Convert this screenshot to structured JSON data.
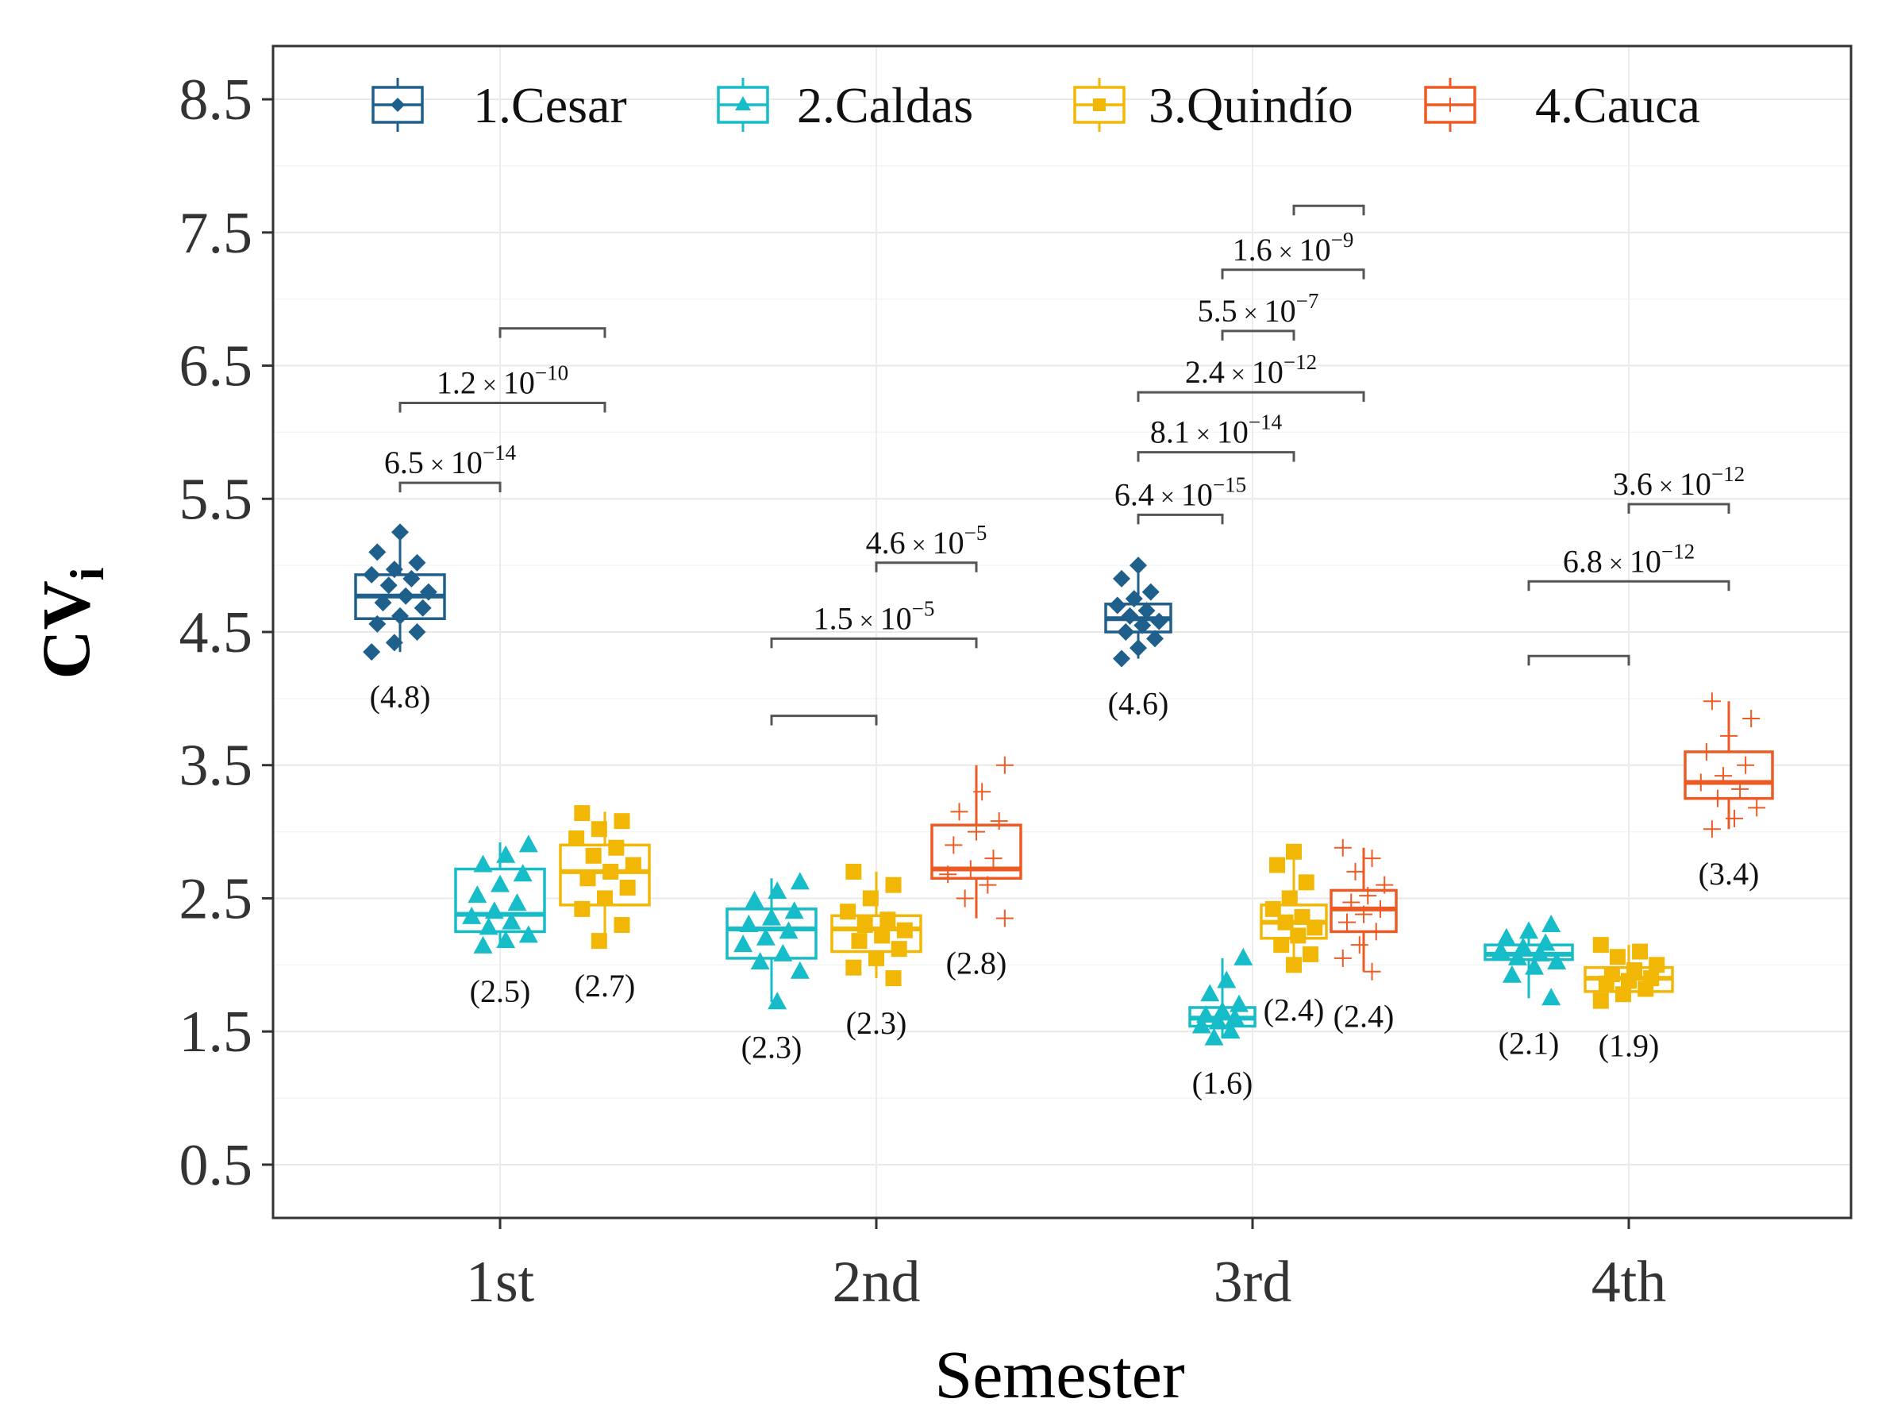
{
  "chart_data": {
    "type": "box",
    "title": "",
    "xlabel": "Semester",
    "ylabel": "CV",
    "ylabel_subscript": "i",
    "ylim": [
      0.1,
      8.9
    ],
    "yticks": [
      "0.5",
      "1.5",
      "2.5",
      "3.5",
      "4.5",
      "5.5",
      "6.5",
      "7.5",
      "8.5"
    ],
    "categories": [
      "1st",
      "2nd",
      "3rd",
      "4th"
    ],
    "legend": {
      "position": "top",
      "items": [
        {
          "label": "1.Cesar",
          "color": "#1f5f8b",
          "marker": "diamond"
        },
        {
          "label": "2.Caldas",
          "color": "#17bcc9",
          "marker": "triangle"
        },
        {
          "label": "3.Quindío",
          "color": "#f2b705",
          "marker": "square"
        },
        {
          "label": "4.Cauca",
          "color": "#ee5a24",
          "marker": "plus"
        }
      ]
    },
    "boxes": [
      {
        "semester": "1st",
        "region": "1.Cesar",
        "q1": 4.6,
        "median": 4.77,
        "q3": 4.93,
        "whisker_low": 4.35,
        "whisker_high": 5.25,
        "points": [
          4.35,
          4.42,
          4.5,
          4.56,
          4.62,
          4.68,
          4.72,
          4.77,
          4.8,
          4.85,
          4.9,
          4.93,
          4.97,
          5.02,
          5.1,
          5.25
        ],
        "label": "(4.8)"
      },
      {
        "semester": "1st",
        "region": "2.Caldas",
        "q1": 2.25,
        "median": 2.38,
        "q3": 2.72,
        "whisker_low": 2.14,
        "whisker_high": 2.92,
        "points": [
          2.14,
          2.18,
          2.22,
          2.28,
          2.32,
          2.36,
          2.4,
          2.46,
          2.52,
          2.6,
          2.68,
          2.75,
          2.82,
          2.9
        ],
        "label": "(2.5)"
      },
      {
        "semester": "1st",
        "region": "3.Quindío",
        "q1": 2.45,
        "median": 2.7,
        "q3": 2.9,
        "whisker_low": 2.18,
        "whisker_high": 3.15,
        "points": [
          2.18,
          2.3,
          2.42,
          2.5,
          2.58,
          2.65,
          2.7,
          2.75,
          2.82,
          2.88,
          2.95,
          3.02,
          3.08,
          3.14
        ],
        "label": "(2.7)"
      },
      {
        "semester": "2nd",
        "region": "2.Caldas",
        "q1": 2.05,
        "median": 2.27,
        "q3": 2.42,
        "whisker_low": 1.72,
        "whisker_high": 2.65,
        "points": [
          1.72,
          1.95,
          2.02,
          2.08,
          2.15,
          2.2,
          2.25,
          2.3,
          2.35,
          2.4,
          2.48,
          2.55,
          2.62
        ],
        "label": "(2.3)"
      },
      {
        "semester": "2nd",
        "region": "3.Quindío",
        "q1": 2.1,
        "median": 2.27,
        "q3": 2.37,
        "whisker_low": 1.9,
        "whisker_high": 2.7,
        "points": [
          1.9,
          1.98,
          2.05,
          2.12,
          2.18,
          2.22,
          2.26,
          2.3,
          2.34,
          2.4,
          2.5,
          2.6,
          2.7
        ],
        "label": "(2.3)"
      },
      {
        "semester": "2nd",
        "region": "4.Cauca",
        "q1": 2.65,
        "median": 2.72,
        "q3": 3.05,
        "whisker_low": 2.35,
        "whisker_high": 3.5,
        "points": [
          2.35,
          2.5,
          2.6,
          2.68,
          2.72,
          2.8,
          2.9,
          3.0,
          3.08,
          3.15,
          3.3,
          3.5
        ],
        "label": "(2.8)"
      },
      {
        "semester": "3rd",
        "region": "1.Cesar",
        "q1": 4.5,
        "median": 4.6,
        "q3": 4.71,
        "whisker_low": 4.3,
        "whisker_high": 5.0,
        "points": [
          4.3,
          4.38,
          4.45,
          4.5,
          4.55,
          4.58,
          4.62,
          4.66,
          4.7,
          4.75,
          4.8,
          4.9,
          5.0
        ],
        "label": "(4.6)"
      },
      {
        "semester": "3rd",
        "region": "2.Caldas",
        "q1": 1.54,
        "median": 1.6,
        "q3": 1.68,
        "whisker_low": 1.45,
        "whisker_high": 2.05,
        "points": [
          1.45,
          1.5,
          1.54,
          1.57,
          1.6,
          1.62,
          1.65,
          1.7,
          1.78,
          1.88,
          2.05
        ],
        "label": "(1.6)"
      },
      {
        "semester": "3rd",
        "region": "3.Quindío",
        "q1": 2.2,
        "median": 2.32,
        "q3": 2.45,
        "whisker_low": 2.0,
        "whisker_high": 2.85,
        "points": [
          2.0,
          2.08,
          2.15,
          2.22,
          2.28,
          2.32,
          2.36,
          2.42,
          2.5,
          2.62,
          2.75,
          2.85
        ],
        "label": "(2.4)"
      },
      {
        "semester": "3rd",
        "region": "4.Cauca",
        "q1": 2.25,
        "median": 2.42,
        "q3": 2.56,
        "whisker_low": 1.95,
        "whisker_high": 2.88,
        "points": [
          1.95,
          2.05,
          2.15,
          2.25,
          2.32,
          2.38,
          2.42,
          2.47,
          2.52,
          2.6,
          2.7,
          2.8,
          2.88
        ],
        "label": "(2.4)"
      },
      {
        "semester": "4th",
        "region": "2.Caldas",
        "q1": 2.04,
        "median": 2.08,
        "q3": 2.15,
        "whisker_low": 1.75,
        "whisker_high": 2.3,
        "points": [
          1.75,
          1.92,
          1.98,
          2.02,
          2.05,
          2.08,
          2.1,
          2.13,
          2.16,
          2.2,
          2.25,
          2.3
        ],
        "label": "(2.1)"
      },
      {
        "semester": "4th",
        "region": "3.Quindío",
        "q1": 1.8,
        "median": 1.9,
        "q3": 1.98,
        "whisker_low": 1.73,
        "whisker_high": 2.15,
        "points": [
          1.73,
          1.78,
          1.82,
          1.86,
          1.88,
          1.9,
          1.93,
          1.96,
          2.0,
          2.06,
          2.1,
          2.15
        ],
        "label": "(1.9)"
      },
      {
        "semester": "4th",
        "region": "4.Cauca",
        "q1": 3.25,
        "median": 3.37,
        "q3": 3.6,
        "whisker_low": 3.02,
        "whisker_high": 3.98,
        "points": [
          3.02,
          3.1,
          3.18,
          3.25,
          3.32,
          3.37,
          3.42,
          3.5,
          3.6,
          3.72,
          3.85,
          3.98
        ],
        "label": "(3.4)"
      }
    ],
    "significance": [
      {
        "semester": "1st",
        "from": "1.Cesar",
        "to": "2.Caldas",
        "y": 5.62,
        "mantissa": "6.5",
        "exponent": "−14"
      },
      {
        "semester": "1st",
        "from": "1.Cesar",
        "to": "3.Quindío",
        "y": 6.22,
        "mantissa": "1.2",
        "exponent": "−10"
      },
      {
        "semester": "1st",
        "from": "2.Caldas",
        "to": "3.Quindío",
        "y": 6.78
      },
      {
        "semester": "2nd",
        "from": "2.Caldas",
        "to": "3.Quindío",
        "y": 3.87
      },
      {
        "semester": "2nd",
        "from": "2.Caldas",
        "to": "4.Cauca",
        "y": 4.45,
        "mantissa": "1.5",
        "exponent": "−5"
      },
      {
        "semester": "2nd",
        "from": "3.Quindío",
        "to": "4.Cauca",
        "y": 5.02,
        "mantissa": "4.6",
        "exponent": "−5"
      },
      {
        "semester": "3rd",
        "from": "1.Cesar",
        "to": "2.Caldas",
        "y": 5.38,
        "mantissa": "6.4",
        "exponent": "−15"
      },
      {
        "semester": "3rd",
        "from": "1.Cesar",
        "to": "3.Quindío",
        "y": 5.85,
        "mantissa": "8.1",
        "exponent": "−14"
      },
      {
        "semester": "3rd",
        "from": "1.Cesar",
        "to": "4.Cauca",
        "y": 6.3,
        "mantissa": "2.4",
        "exponent": "−12"
      },
      {
        "semester": "3rd",
        "from": "2.Caldas",
        "to": "3.Quindío",
        "y": 6.76,
        "mantissa": "5.5",
        "exponent": "−7"
      },
      {
        "semester": "3rd",
        "from": "2.Caldas",
        "to": "4.Cauca",
        "y": 7.22,
        "mantissa": "1.6",
        "exponent": "−9"
      },
      {
        "semester": "3rd",
        "from": "3.Quindío",
        "to": "4.Cauca",
        "y": 7.7
      },
      {
        "semester": "4th",
        "from": "2.Caldas",
        "to": "3.Quindío",
        "y": 4.32
      },
      {
        "semester": "4th",
        "from": "2.Caldas",
        "to": "4.Cauca",
        "y": 4.88,
        "mantissa": "6.8",
        "exponent": "−12"
      },
      {
        "semester": "4th",
        "from": "3.Quindío",
        "to": "4.Cauca",
        "y": 5.46,
        "mantissa": "3.6",
        "exponent": "−12"
      }
    ],
    "pvalue_format": {
      "times": "×",
      "base": "10"
    }
  }
}
